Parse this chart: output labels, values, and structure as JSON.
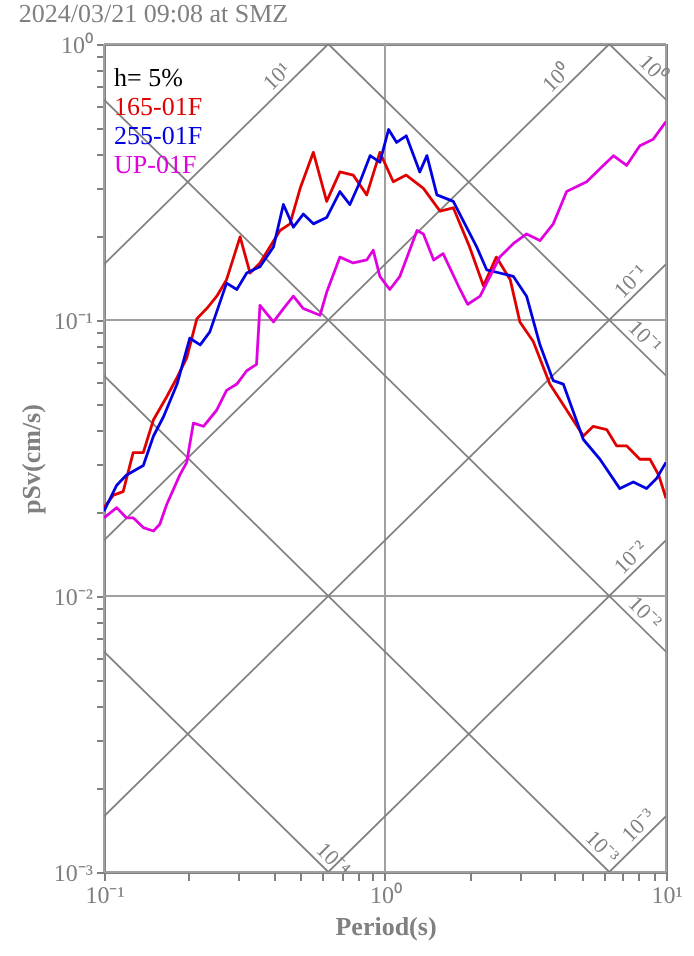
{
  "chart_data": {
    "type": "line",
    "title": "2024/03/21 09:08 at SMZ",
    "xlabel": "Period(s)",
    "ylabel": "pSv(cm/s)",
    "log": "xy",
    "grid": true,
    "legend": "top left",
    "xlim": [
      0.1,
      10
    ],
    "ylim": [
      0.001,
      1
    ],
    "xticks": [
      {
        "value": 0.1,
        "label": "10⁻¹"
      },
      {
        "value": 0.2,
        "label": null
      },
      {
        "value": 0.3,
        "label": null
      },
      {
        "value": 0.4,
        "label": null
      },
      {
        "value": 0.5,
        "label": null
      },
      {
        "value": 0.6,
        "label": null
      },
      {
        "value": 0.7,
        "label": null
      },
      {
        "value": 0.8,
        "label": null
      },
      {
        "value": 0.9,
        "label": null
      },
      {
        "value": 1,
        "label": "10⁰"
      },
      {
        "value": 2,
        "label": null
      },
      {
        "value": 3,
        "label": null
      },
      {
        "value": 4,
        "label": null
      },
      {
        "value": 5,
        "label": null
      },
      {
        "value": 6,
        "label": null
      },
      {
        "value": 7,
        "label": null
      },
      {
        "value": 8,
        "label": null
      },
      {
        "value": 9,
        "label": null
      },
      {
        "value": 10,
        "label": "10¹"
      }
    ],
    "yticks": [
      {
        "value": 0.001,
        "label": "10⁻³"
      },
      {
        "value": 0.002,
        "label": null
      },
      {
        "value": 0.003,
        "label": null
      },
      {
        "value": 0.004,
        "label": null
      },
      {
        "value": 0.005,
        "label": null
      },
      {
        "value": 0.006,
        "label": null
      },
      {
        "value": 0.007,
        "label": null
      },
      {
        "value": 0.008,
        "label": null
      },
      {
        "value": 0.009,
        "label": null
      },
      {
        "value": 0.01,
        "label": "10⁻²"
      },
      {
        "value": 0.02,
        "label": null
      },
      {
        "value": 0.03,
        "label": null
      },
      {
        "value": 0.04,
        "label": null
      },
      {
        "value": 0.05,
        "label": null
      },
      {
        "value": 0.06,
        "label": null
      },
      {
        "value": 0.07,
        "label": null
      },
      {
        "value": 0.08,
        "label": null
      },
      {
        "value": 0.09,
        "label": null
      },
      {
        "value": 0.1,
        "label": "10⁻¹"
      },
      {
        "value": 0.2,
        "label": null
      },
      {
        "value": 0.3,
        "label": null
      },
      {
        "value": 0.4,
        "label": null
      },
      {
        "value": 0.5,
        "label": null
      },
      {
        "value": 0.6,
        "label": null
      },
      {
        "value": 0.7,
        "label": null
      },
      {
        "value": 0.8,
        "label": null
      },
      {
        "value": 0.9,
        "label": null
      },
      {
        "value": 1,
        "label": "10⁰"
      }
    ],
    "annotations": [
      "h= 5%",
      {
        "text": "10¹",
        "x": 0.445,
        "y": 0.708
      },
      {
        "text": "10⁰",
        "x": 4.4,
        "y": 0.7
      },
      {
        "text": "10⁰",
        "x": 8.36,
        "y": 0.752
      },
      {
        "text": "10⁻¹",
        "x": 8.07,
        "y": 0.128
      },
      {
        "text": "10⁻¹",
        "x": 7.8,
        "y": 0.0806
      },
      {
        "text": "10⁻²",
        "x": 8.07,
        "y": 0.0128
      },
      {
        "text": "10⁻²",
        "x": 7.8,
        "y": 0.00806
      },
      {
        "text": "10⁻⁴",
        "x": 0.607,
        "y": 0.00103
      },
      {
        "text": "10⁻³",
        "x": 5.5,
        "y": 0.001142
      },
      {
        "text": "10⁻³",
        "x": 8.6,
        "y": 0.001369
      }
    ],
    "series": [
      {
        "color": "#808080",
        "x": [
          6.2832,
          10
        ],
        "values": [
          1,
          0.6283
        ]
      },
      {
        "color": "#808080",
        "x": [
          0.6283,
          10
        ],
        "values": [
          1,
          0.06283
        ]
      },
      {
        "color": "#808080",
        "x": [
          0.1,
          10
        ],
        "values": [
          0.6283,
          0.006283
        ]
      },
      {
        "color": "#808080",
        "x": [
          0.1,
          6.2832
        ],
        "values": [
          0.06283,
          0.001
        ]
      },
      {
        "color": "#808080",
        "x": [
          0.1,
          0.6283
        ],
        "values": [
          0.006283,
          0.001
        ]
      },
      {
        "color": "#808080",
        "x": [
          0.1,
          0.6283
        ],
        "values": [
          0.1592,
          1
        ]
      },
      {
        "color": "#808080",
        "x": [
          0.1,
          6.2832
        ],
        "values": [
          0.01592,
          1
        ]
      },
      {
        "color": "#808080",
        "x": [
          0.1,
          10
        ],
        "values": [
          0.001592,
          0.1592
        ]
      },
      {
        "color": "#808080",
        "x": [
          0.6283,
          10
        ],
        "values": [
          0.001,
          0.01592
        ]
      },
      {
        "color": "#808080",
        "x": [
          6.2832,
          10
        ],
        "values": [
          0.001,
          0.001592
        ]
      },
      {
        "name": "165-01F",
        "color": "#e00000",
        "x": [
          0.1,
          0.108,
          0.117,
          0.127,
          0.138,
          0.15,
          0.167,
          0.182,
          0.197,
          0.214,
          0.232,
          0.252,
          0.273,
          0.305,
          0.331,
          0.359,
          0.423,
          0.459,
          0.499,
          0.556,
          0.62,
          0.691,
          0.771,
          0.861,
          0.959,
          1.07,
          1.19,
          1.37,
          1.57,
          1.75,
          2.0,
          2.24,
          2.49,
          2.79,
          3.02,
          3.37,
          3.86,
          4.43,
          5.08,
          5.51,
          6.15,
          6.67,
          7.24,
          8.07,
          8.77,
          9.42,
          10
        ],
        "values": [
          0.0209,
          0.0232,
          0.0239,
          0.0331,
          0.0331,
          0.0435,
          0.0526,
          0.0619,
          0.0729,
          0.101,
          0.11,
          0.122,
          0.14,
          0.2,
          0.148,
          0.161,
          0.211,
          0.223,
          0.3,
          0.405,
          0.269,
          0.344,
          0.335,
          0.284,
          0.405,
          0.317,
          0.335,
          0.3,
          0.248,
          0.255,
          0.184,
          0.133,
          0.169,
          0.14,
          0.0984,
          0.0836,
          0.0586,
          0.0472,
          0.038,
          0.0412,
          0.0401,
          0.035,
          0.035,
          0.0313,
          0.0313,
          0.0274,
          0.0226
        ]
      },
      {
        "name": "255-01F",
        "color": "#0000e0",
        "x": [
          0.1,
          0.111,
          0.12,
          0.138,
          0.15,
          0.163,
          0.182,
          0.202,
          0.22,
          0.238,
          0.273,
          0.297,
          0.322,
          0.359,
          0.401,
          0.435,
          0.472,
          0.512,
          0.556,
          0.62,
          0.691,
          0.75,
          0.815,
          0.885,
          0.959,
          1.03,
          1.1,
          1.19,
          1.33,
          1.41,
          1.53,
          1.75,
          1.95,
          2.12,
          2.3,
          2.56,
          2.86,
          3.19,
          3.56,
          3.97,
          4.31,
          5.08,
          5.82,
          6.85,
          7.65,
          8.53,
          9.27,
          10
        ],
        "values": [
          0.0203,
          0.0252,
          0.0274,
          0.0297,
          0.038,
          0.0447,
          0.0586,
          0.0859,
          0.0813,
          0.0906,
          0.136,
          0.129,
          0.148,
          0.156,
          0.184,
          0.262,
          0.217,
          0.242,
          0.223,
          0.235,
          0.292,
          0.262,
          0.317,
          0.394,
          0.373,
          0.49,
          0.44,
          0.465,
          0.344,
          0.394,
          0.284,
          0.269,
          0.217,
          0.184,
          0.152,
          0.148,
          0.144,
          0.122,
          0.0813,
          0.0603,
          0.0586,
          0.0369,
          0.0313,
          0.0245,
          0.0259,
          0.0245,
          0.0267,
          0.0305
        ]
      },
      {
        "name": "UP-01F",
        "color": "#e000e0",
        "x": [
          0.1,
          0.111,
          0.12,
          0.127,
          0.138,
          0.15,
          0.158,
          0.167,
          0.186,
          0.197,
          0.208,
          0.226,
          0.252,
          0.273,
          0.297,
          0.322,
          0.349,
          0.359,
          0.401,
          0.435,
          0.472,
          0.512,
          0.587,
          0.62,
          0.691,
          0.771,
          0.861,
          0.908,
          0.959,
          1.04,
          1.13,
          1.3,
          1.37,
          1.49,
          1.61,
          1.85,
          1.97,
          2.18,
          2.56,
          2.86,
          3.19,
          3.56,
          3.97,
          4.43,
          5.22,
          5.82,
          6.5,
          7.24,
          8.07,
          9.01,
          10
        ],
        "values": [
          0.0192,
          0.0209,
          0.0192,
          0.0192,
          0.0177,
          0.0172,
          0.0182,
          0.0214,
          0.0274,
          0.0305,
          0.0423,
          0.0412,
          0.0472,
          0.0556,
          0.0586,
          0.0655,
          0.0691,
          0.113,
          0.0984,
          0.11,
          0.122,
          0.11,
          0.104,
          0.126,
          0.169,
          0.161,
          0.165,
          0.179,
          0.144,
          0.129,
          0.144,
          0.211,
          0.205,
          0.165,
          0.174,
          0.129,
          0.114,
          0.122,
          0.169,
          0.189,
          0.205,
          0.194,
          0.223,
          0.292,
          0.317,
          0.353,
          0.394,
          0.363,
          0.428,
          0.452,
          0.523
        ]
      }
    ]
  }
}
